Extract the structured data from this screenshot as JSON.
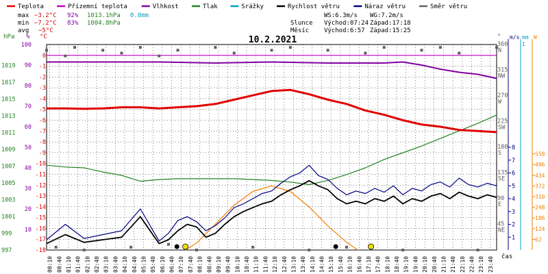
{
  "legend": [
    {
      "label": "Teplota",
      "color": "#e00000"
    },
    {
      "label": "Přízemní teplota",
      "color": "#c000c0"
    },
    {
      "label": "Vlhkost",
      "color": "#8000a0"
    },
    {
      "label": "Tlak",
      "color": "#208020"
    },
    {
      "label": "Srážky",
      "color": "#00a0c0"
    },
    {
      "label": "Rychlost větru",
      "color": "#000000"
    },
    {
      "label": "Náraz větru",
      "color": "#000080"
    },
    {
      "label": "Směr větru",
      "color": "#606060"
    }
  ],
  "stats": {
    "max_label": "max",
    "max_temp": "−3.2°C",
    "max_hum": "92%",
    "max_press": "1013.1hPa",
    "max_rain": "0.0mm",
    "min_label": "min",
    "min_temp": "−7.2°C",
    "min_hum": "83%",
    "min_press": "1004.8hPa",
    "avg_label": "avg",
    "avg_temp": "−5°C"
  },
  "info": {
    "ws": "WS:6.3m/s",
    "wg": "WG:7.2m/s",
    "sun_label": "Slunce",
    "sun_rise": "Východ:07:24",
    "sun_set": "Západ:17:18",
    "moon_label": "Měsíc",
    "moon_rise": "Východ:6:57",
    "moon_set": "Západ:15:25"
  },
  "date": "10.2.2021",
  "units": {
    "hpa": "hPa",
    "pct": "%",
    "degc": "°C",
    "deg": "°",
    "ms": "m/s",
    "mm": "mm",
    "w": "W",
    "time": "čas"
  },
  "chart_data": {
    "type": "line",
    "title": "10.2.2021",
    "x_unit": "time of day",
    "x_labels": [
      "00:10",
      "00:40",
      "01:10",
      "01:40",
      "02:10",
      "02:40",
      "03:10",
      "03:40",
      "04:10",
      "04:40",
      "05:10",
      "05:40",
      "06:10",
      "06:40",
      "07:10",
      "07:40",
      "08:10",
      "08:40",
      "09:10",
      "09:40",
      "10:10",
      "10:40",
      "11:10",
      "11:40",
      "12:10",
      "12:40",
      "13:10",
      "13:40",
      "14:10",
      "14:40",
      "15:10",
      "15:40",
      "16:10",
      "16:40",
      "17:10",
      "17:40",
      "18:10",
      "18:40",
      "19:10",
      "19:40",
      "20:10",
      "20:40",
      "21:10",
      "21:40",
      "22:10",
      "22:40",
      "23:10",
      "23:40"
    ],
    "axes": {
      "pressure_hPa": {
        "ticks": [
          997,
          999,
          1001,
          1003,
          1005,
          1007,
          1009,
          1011,
          1013,
          1015,
          1017,
          1019
        ],
        "range": [
          997,
          1021.5
        ]
      },
      "humidity_pct": {
        "ticks": [
          10,
          20,
          30,
          40,
          50,
          60,
          70,
          80,
          90,
          100
        ],
        "range": [
          0,
          100
        ]
      },
      "temperature_C": {
        "ticks": [
          0,
          -1,
          -2,
          -3,
          -4,
          -5,
          -6,
          -7,
          -8,
          -9,
          -10,
          -11,
          -12,
          -13,
          -14,
          -15,
          -16,
          -17,
          -18
        ],
        "range": [
          -18,
          1
        ]
      },
      "wind_dir_deg": {
        "ticks": [
          "360 N",
          "315 NW",
          "270 W",
          "225 SW",
          "180 S",
          "135 SE",
          "90 E",
          "45 NE"
        ],
        "range": [
          0,
          360
        ]
      },
      "wind_ms": {
        "ticks": [
          1,
          2,
          3,
          4,
          5,
          6,
          7,
          8
        ],
        "range": [
          0,
          8
        ]
      },
      "rain_mm": {
        "ticks": [
          1
        ],
        "range": [
          0,
          1
        ]
      },
      "solar_W": {
        "ticks": [
          62,
          124,
          186,
          248,
          310,
          372,
          434,
          496,
          558
        ],
        "range": [
          0,
          620
        ]
      }
    },
    "series": [
      {
        "name": "Teplota",
        "unit": "°C",
        "color": "#e00000",
        "points": [
          [
            0,
            -4.9
          ],
          [
            1,
            -4.9
          ],
          [
            2,
            -4.95
          ],
          [
            3,
            -4.9
          ],
          [
            4,
            -4.8
          ],
          [
            5,
            -4.8
          ],
          [
            6,
            -4.9
          ],
          [
            7,
            -4.8
          ],
          [
            8,
            -4.7
          ],
          [
            9,
            -4.5
          ],
          [
            10,
            -4.1
          ],
          [
            11,
            -3.7
          ],
          [
            12,
            -3.3
          ],
          [
            13,
            -3.2
          ],
          [
            14,
            -3.6
          ],
          [
            15,
            -4.1
          ],
          [
            16,
            -4.5
          ],
          [
            17,
            -5.1
          ],
          [
            18,
            -5.5
          ],
          [
            19,
            -6.0
          ],
          [
            20,
            -6.4
          ],
          [
            21,
            -6.6
          ],
          [
            22,
            -6.9
          ],
          [
            23,
            -7.0
          ],
          [
            24,
            -7.1
          ]
        ]
      },
      {
        "name": "Přízemní teplota",
        "unit": "°C",
        "color": "#c000c0",
        "points": [
          [
            0,
            0
          ],
          [
            24,
            0
          ]
        ]
      },
      {
        "name": "Vlhkost",
        "unit": "%",
        "color": "#8000a0",
        "points": [
          [
            0,
            91.5
          ],
          [
            3,
            91.5
          ],
          [
            6,
            91.5
          ],
          [
            9,
            91
          ],
          [
            12,
            91.5
          ],
          [
            15,
            91
          ],
          [
            18,
            91
          ],
          [
            19,
            91.5
          ],
          [
            20,
            90
          ],
          [
            21,
            88
          ],
          [
            22,
            86.5
          ],
          [
            23,
            85.5
          ],
          [
            24,
            83.5
          ]
        ]
      },
      {
        "name": "Tlak",
        "unit": "hPa",
        "color": "#208020",
        "points": [
          [
            0,
            1007.1
          ],
          [
            1,
            1006.9
          ],
          [
            2,
            1006.8
          ],
          [
            3,
            1006.3
          ],
          [
            4,
            1005.9
          ],
          [
            5,
            1005.2
          ],
          [
            6,
            1005.4
          ],
          [
            7,
            1005.5
          ],
          [
            8,
            1005.5
          ],
          [
            10,
            1005.5
          ],
          [
            12,
            1005.3
          ],
          [
            13,
            1005.1
          ],
          [
            14,
            1004.8
          ],
          [
            15,
            1005.3
          ],
          [
            16,
            1006.0
          ],
          [
            17,
            1006.8
          ],
          [
            18,
            1007.8
          ],
          [
            19,
            1008.6
          ],
          [
            20,
            1009.4
          ],
          [
            21,
            1010.3
          ],
          [
            22,
            1011.2
          ],
          [
            23,
            1012.1
          ],
          [
            24,
            1013.1
          ]
        ]
      },
      {
        "name": "Srážky",
        "unit": "mm",
        "color": "#00a0c0",
        "points": [
          [
            0,
            0
          ],
          [
            24,
            0
          ]
        ]
      },
      {
        "name": "Rychlost větru",
        "unit": "m/s",
        "color": "#000000",
        "points": [
          [
            0,
            0.5
          ],
          [
            1,
            1.2
          ],
          [
            2,
            0.6
          ],
          [
            3,
            0.8
          ],
          [
            4,
            1.0
          ],
          [
            5,
            2.6
          ],
          [
            6,
            0.5
          ],
          [
            6.5,
            0.8
          ],
          [
            7,
            1.5
          ],
          [
            7.5,
            2.0
          ],
          [
            8,
            1.8
          ],
          [
            8.5,
            1.0
          ],
          [
            9,
            1.3
          ],
          [
            9.5,
            2.0
          ],
          [
            10,
            2.6
          ],
          [
            10.5,
            3.0
          ],
          [
            11,
            3.3
          ],
          [
            11.5,
            3.6
          ],
          [
            12,
            3.8
          ],
          [
            12.5,
            4.3
          ],
          [
            13,
            4.7
          ],
          [
            13.5,
            5.0
          ],
          [
            14,
            5.4
          ],
          [
            14.5,
            5.0
          ],
          [
            15,
            4.7
          ],
          [
            15.5,
            4.0
          ],
          [
            16,
            3.6
          ],
          [
            16.5,
            3.8
          ],
          [
            17,
            3.6
          ],
          [
            17.5,
            4.0
          ],
          [
            18,
            3.8
          ],
          [
            18.5,
            4.2
          ],
          [
            19,
            3.6
          ],
          [
            19.5,
            4.0
          ],
          [
            20,
            3.8
          ],
          [
            20.5,
            4.2
          ],
          [
            21,
            4.4
          ],
          [
            21.5,
            4.0
          ],
          [
            22,
            4.5
          ],
          [
            22.5,
            4.2
          ],
          [
            23,
            4.0
          ],
          [
            23.5,
            4.3
          ],
          [
            24,
            4.1
          ]
        ]
      },
      {
        "name": "Náraz větru",
        "unit": "m/s",
        "color": "#000080",
        "points": [
          [
            0,
            0.8
          ],
          [
            1,
            2.0
          ],
          [
            2,
            0.9
          ],
          [
            3,
            1.2
          ],
          [
            4,
            1.5
          ],
          [
            5,
            3.2
          ],
          [
            6,
            0.7
          ],
          [
            6.5,
            1.3
          ],
          [
            7,
            2.3
          ],
          [
            7.5,
            2.6
          ],
          [
            8,
            2.2
          ],
          [
            8.5,
            1.5
          ],
          [
            9,
            1.9
          ],
          [
            9.5,
            2.5
          ],
          [
            10,
            3.3
          ],
          [
            10.5,
            3.6
          ],
          [
            11,
            4.0
          ],
          [
            11.5,
            4.4
          ],
          [
            12,
            4.6
          ],
          [
            12.5,
            5.2
          ],
          [
            13,
            5.7
          ],
          [
            13.5,
            6.0
          ],
          [
            14,
            6.6
          ],
          [
            14.5,
            5.8
          ],
          [
            15,
            5.5
          ],
          [
            15.5,
            4.8
          ],
          [
            16,
            4.3
          ],
          [
            16.5,
            4.6
          ],
          [
            17,
            4.4
          ],
          [
            17.5,
            4.8
          ],
          [
            18,
            4.5
          ],
          [
            18.5,
            5.0
          ],
          [
            19,
            4.3
          ],
          [
            19.5,
            4.8
          ],
          [
            20,
            4.6
          ],
          [
            20.5,
            5.1
          ],
          [
            21,
            5.3
          ],
          [
            21.5,
            4.9
          ],
          [
            22,
            5.6
          ],
          [
            22.5,
            5.1
          ],
          [
            23,
            4.9
          ],
          [
            23.5,
            5.2
          ],
          [
            24,
            5.0
          ]
        ]
      },
      {
        "name": "Sluneční záření",
        "unit": "W",
        "color": "#f08000",
        "points": [
          [
            7.4,
            0
          ],
          [
            8,
            40
          ],
          [
            9,
            150
          ],
          [
            10,
            260
          ],
          [
            11,
            340
          ],
          [
            12,
            372
          ],
          [
            13,
            340
          ],
          [
            14,
            250
          ],
          [
            15,
            140
          ],
          [
            16,
            45
          ],
          [
            16.6,
            0
          ]
        ]
      },
      {
        "name": "Směr větru",
        "unit": "°",
        "color": "#606060",
        "points": [
          [
            0,
            350
          ],
          [
            0.5,
            5
          ],
          [
            1,
            340
          ],
          [
            1.5,
            355
          ],
          [
            2,
            0
          ],
          [
            3,
            350
          ],
          [
            4,
            345
          ],
          [
            4.5,
            5
          ],
          [
            5,
            355
          ],
          [
            6,
            340
          ],
          [
            6.5,
            10
          ],
          [
            7,
            350
          ],
          [
            8,
            0
          ],
          [
            9,
            355
          ],
          [
            10,
            345
          ],
          [
            11,
            5
          ],
          [
            12,
            350
          ],
          [
            13,
            355
          ],
          [
            14,
            0
          ],
          [
            15,
            350
          ],
          [
            16,
            5
          ],
          [
            17,
            345
          ],
          [
            18,
            355
          ],
          [
            19,
            0
          ],
          [
            20,
            350
          ],
          [
            21,
            355
          ],
          [
            22,
            345
          ],
          [
            23,
            0
          ],
          [
            24,
            355
          ]
        ]
      }
    ]
  }
}
